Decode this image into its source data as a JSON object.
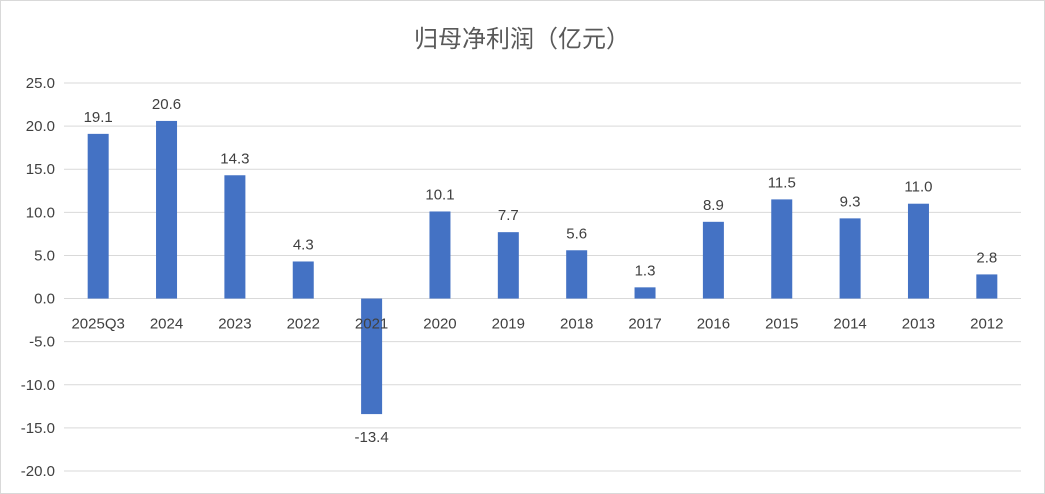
{
  "chart_data": {
    "type": "bar",
    "title": "归母净利润（亿元）",
    "categories": [
      "2025Q3",
      "2024",
      "2023",
      "2022",
      "2021",
      "2020",
      "2019",
      "2018",
      "2017",
      "2016",
      "2015",
      "2014",
      "2013",
      "2012"
    ],
    "values": [
      19.1,
      20.6,
      14.3,
      4.3,
      -13.4,
      10.1,
      7.7,
      5.6,
      1.3,
      8.9,
      11.5,
      9.3,
      11.0,
      2.8
    ],
    "data_labels": [
      "19.1",
      "20.6",
      "14.3",
      "4.3",
      "-13.4",
      "10.1",
      "7.7",
      "5.6",
      "1.3",
      "8.9",
      "11.5",
      "9.3",
      "11.0",
      "2.8"
    ],
    "yticks": [
      "25.0",
      "20.0",
      "15.0",
      "10.0",
      "5.0",
      "0.0",
      "-5.0",
      "-10.0",
      "-15.0",
      "-20.0"
    ],
    "ylim": [
      -20,
      25
    ],
    "grid": true,
    "legend": "none",
    "bar_color": "#4472c4"
  }
}
